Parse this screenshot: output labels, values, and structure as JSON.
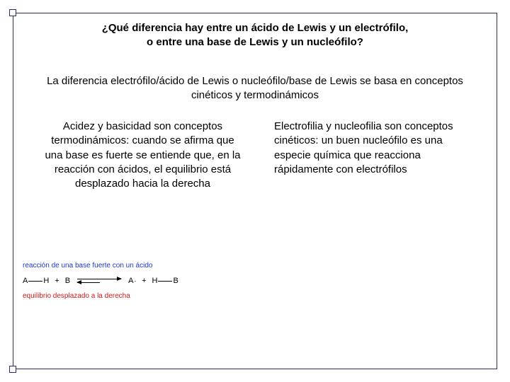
{
  "title_line1": "¿Qué diferencia hay entre un ácido de Lewis y un electrófilo,",
  "title_line2": "o entre una base de Lewis y un nucleófilo?",
  "subtitle": "La diferencia electrófilo/ácido de Lewis o nucleófilo/base de Lewis se basa en conceptos cinéticos y termodinámicos",
  "left_col": "Acidez y basicidad son conceptos termodinámicos: cuando se afirma que una base es fuerte se entiende que, en la reacción con ácidos, el equilibrio está desplazado hacia la derecha",
  "right_col": "Electrofilia y nucleofilia son conceptos cinéticos: un buen nucleófilo es una especie química  que reacciona rápidamente con electrófilos",
  "reaction": {
    "top_label": "reacción de una base fuerte con un ácido",
    "bottom_label": "equilibrio desplazado a la derecha",
    "reactant1_a": "A",
    "reactant1_b": "H",
    "plus": "+",
    "reactant2": "B",
    "product1": "A",
    "product1_charge": "-",
    "product2_a": "H",
    "product2_b": "B"
  },
  "colors": {
    "frame": "#2b2b6b",
    "label_blue": "#1d36c9",
    "label_red": "#d01818",
    "text": "#000000",
    "bg": "#ffffff"
  }
}
